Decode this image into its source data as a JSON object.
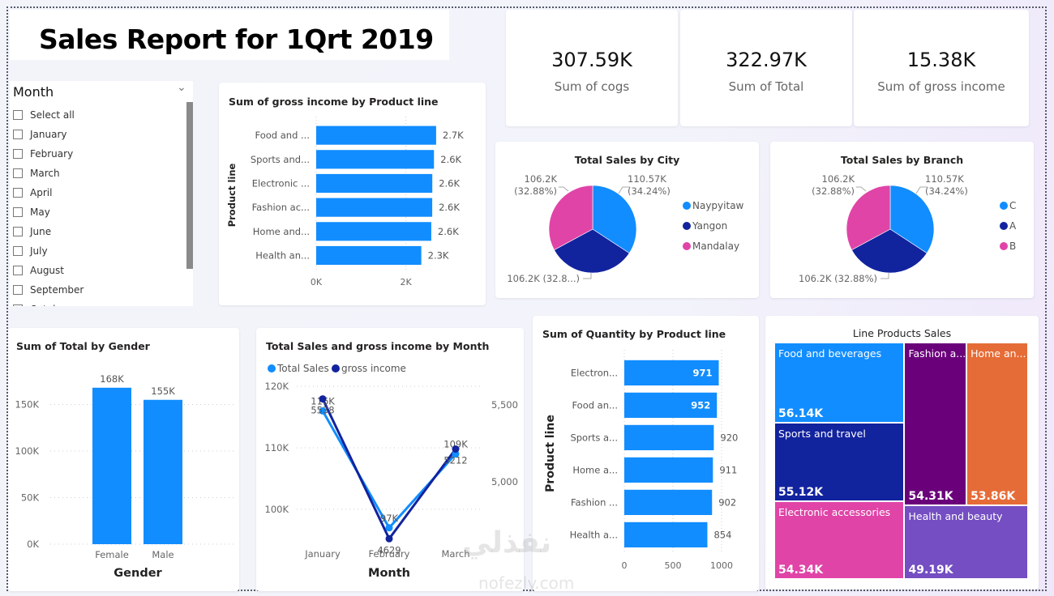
{
  "report": {
    "title": "Sales Report for 1Qrt 2019"
  },
  "slicer": {
    "label": "Month",
    "items": [
      "Select all",
      "January",
      "February",
      "March",
      "April",
      "May",
      "June",
      "July",
      "August",
      "September",
      "October"
    ]
  },
  "kpis": [
    {
      "value": "307.59K",
      "label": "Sum of cogs"
    },
    {
      "value": "322.97K",
      "label": "Sum of Total"
    },
    {
      "value": "15.38K",
      "label": "Sum of gross income"
    }
  ],
  "colors": {
    "blue": "#118dff",
    "navy": "#12239e",
    "pink": "#e044a7",
    "purple": "#6b007b",
    "orange": "#e66c37",
    "violet": "#744ec2"
  },
  "watermark": {
    "text_ar": "نفذلي",
    "text_en": "nofezly.com"
  },
  "chart_data": [
    {
      "id": "gross-income-by-product",
      "type": "bar",
      "orientation": "horizontal",
      "title": "Sum of gross income by Product line",
      "ylabel": "Product line",
      "categories": [
        "Food and ...",
        "Sports and...",
        "Electronic ...",
        "Fashion ac...",
        "Home and...",
        "Health an..."
      ],
      "values": [
        2673,
        2625,
        2588,
        2586,
        2565,
        2343
      ],
      "data_labels": [
        "2.7K",
        "2.6K",
        "2.6K",
        "2.6K",
        "2.6K",
        "2.3K"
      ],
      "xticks": [
        "0K",
        "2K"
      ],
      "xlim": [
        0,
        3000
      ]
    },
    {
      "id": "sales-by-city",
      "type": "pie",
      "title": "Total Sales by City",
      "categories": [
        "Naypyitaw",
        "Yangon",
        "Mandalay"
      ],
      "values": [
        110570,
        106200,
        106200
      ],
      "data_labels": [
        "110.57K\n(34.24%)",
        "106.2K (32.8...)",
        "106.2K\n(32.88%)"
      ],
      "legend": "right"
    },
    {
      "id": "sales-by-branch",
      "type": "pie",
      "title": "Total Sales by Branch",
      "categories": [
        "C",
        "A",
        "B"
      ],
      "values": [
        110570,
        106200,
        106200
      ],
      "data_labels": [
        "110.57K\n(34.24%)",
        "106.2K (32.88%)",
        "106.2K\n(32.88%)"
      ],
      "legend": "right"
    },
    {
      "id": "total-by-gender",
      "type": "bar",
      "title": "Sum of Total by Gender",
      "xlabel": "Gender",
      "categories": [
        "Female",
        "Male"
      ],
      "values": [
        168000,
        155000
      ],
      "data_labels": [
        "168K",
        "155K"
      ],
      "yticks": [
        "0K",
        "50K",
        "100K",
        "150K"
      ],
      "ylim": [
        0,
        180000
      ]
    },
    {
      "id": "sales-income-by-month",
      "type": "line",
      "title": "Total Sales and gross income by Month",
      "xlabel": "Month",
      "categories": [
        "January",
        "February",
        "March"
      ],
      "series": [
        {
          "name": "Total Sales",
          "values": [
            116000,
            97000,
            109000
          ],
          "labels": [
            "116K",
            "97K",
            "109K"
          ],
          "axis": "left"
        },
        {
          "name": "gross income",
          "values": [
            5538,
            4629,
            5212
          ],
          "labels": [
            "5538",
            "4629",
            "5212"
          ],
          "axis": "right"
        }
      ],
      "yticks_left": [
        "100K",
        "110K",
        "120K"
      ],
      "ylim_left": [
        95000,
        120000
      ],
      "yticks_right": [
        "5,000",
        "5,500"
      ],
      "ylim_right": [
        4620,
        5620
      ]
    },
    {
      "id": "quantity-by-product",
      "type": "bar",
      "orientation": "horizontal",
      "title": "Sum of Quantity by Product line",
      "ylabel": "Product line",
      "categories": [
        "Electron...",
        "Food an...",
        "Sports a...",
        "Home a...",
        "Fashion ...",
        "Health a..."
      ],
      "values": [
        971,
        952,
        920,
        911,
        902,
        854
      ],
      "data_labels": [
        "971",
        "952",
        "920",
        "911",
        "902",
        "854"
      ],
      "xticks": [
        "0",
        "500",
        "1000"
      ],
      "xlim": [
        0,
        1000
      ]
    },
    {
      "id": "line-products-treemap",
      "type": "treemap",
      "title": "Line Products Sales",
      "categories": [
        "Food and beverages",
        "Sports and travel",
        "Electronic accessories",
        "Fashion a...",
        "Home an...",
        "Health and beauty"
      ],
      "values": [
        56140,
        55120,
        54340,
        54310,
        53860,
        49190
      ],
      "data_labels": [
        "56.14K",
        "55.12K",
        "54.34K",
        "54.31K",
        "53.86K",
        "49.19K"
      ]
    }
  ]
}
